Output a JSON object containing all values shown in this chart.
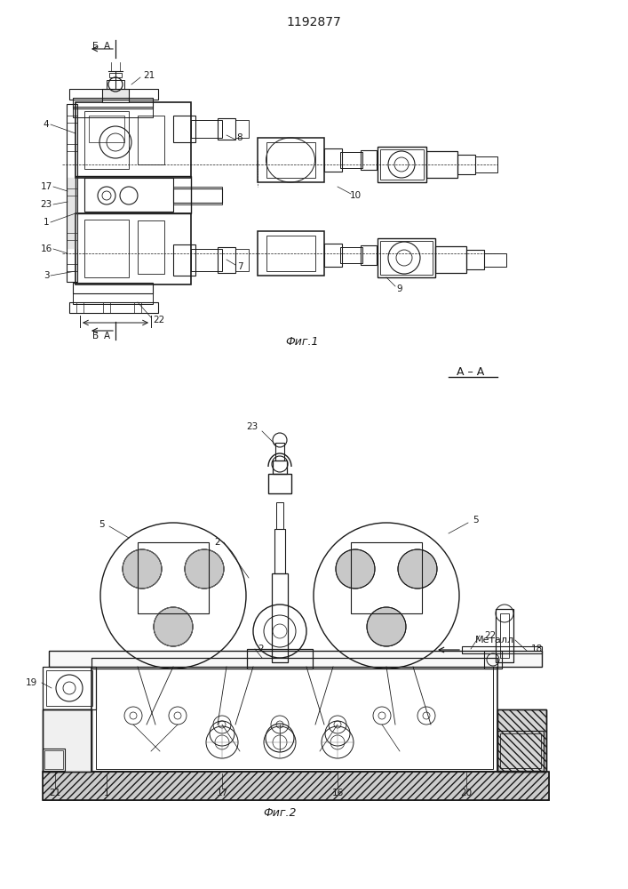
{
  "title": "1192877",
  "fig1_label": "Фиг.1",
  "fig2_label": "Фиг.2",
  "section_label": "А – А",
  "metal_label": "Металл",
  "background_color": "#ffffff",
  "line_color": "#1a1a1a",
  "lw": 0.7
}
